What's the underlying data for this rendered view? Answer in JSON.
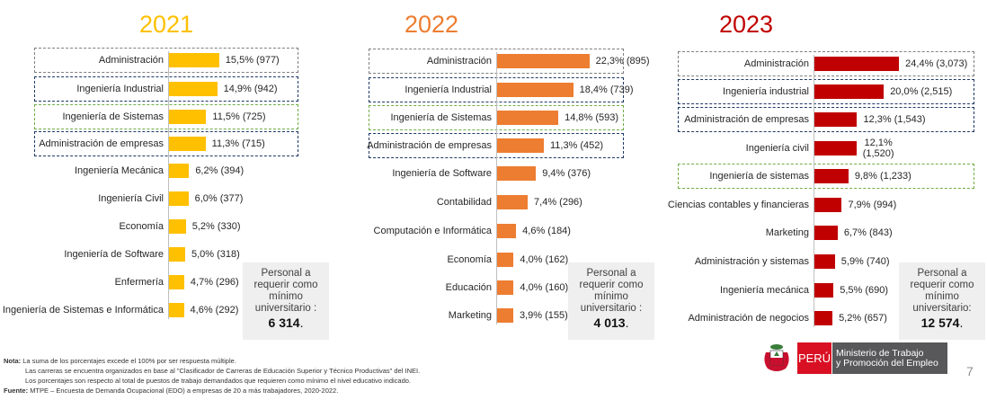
{
  "chart_data": [
    {
      "type": "bar",
      "orientation": "horizontal",
      "title": "2021",
      "color": "#FFC000",
      "categories": [
        "Administración",
        "Ingeniería Industrial",
        "Ingeniería de Sistemas",
        "Administración de empresas",
        "Ingeniería Mecánica",
        "Ingeniería Civil",
        "Economía",
        "Ingeniería de Software",
        "Enfermería",
        "Ingeniería de Sistemas e Informática"
      ],
      "values": [
        15.5,
        14.9,
        11.5,
        11.3,
        6.2,
        6.0,
        5.2,
        5.0,
        4.7,
        4.6
      ],
      "labels": [
        "15,5% (977)",
        "14,9% (942)",
        "11,5% (725)",
        "11,3% (715)",
        "6,2% (394)",
        "6,0% (377)",
        "5,2% (330)",
        "5,0% (318)",
        "4,7% (296)",
        "4,6% (292)"
      ],
      "highlight": [
        "gray",
        "navy",
        "green",
        "navy",
        null,
        null,
        null,
        null,
        null,
        null
      ],
      "note": {
        "text": "Personal a requerir como mínimo universitario :",
        "total": "6 314",
        "suffix": "."
      }
    },
    {
      "type": "bar",
      "orientation": "horizontal",
      "title": "2022",
      "color": "#ED7D31",
      "categories": [
        "Administración",
        "Ingeniería Industrial",
        "Ingeniería de Sistemas",
        "Administración de empresas",
        "Ingeniería de Software",
        "Contabilidad",
        "Computación e Informática",
        "Economía",
        "Educación",
        "Marketing"
      ],
      "values": [
        22.3,
        18.4,
        14.8,
        11.3,
        9.4,
        7.4,
        4.6,
        4.0,
        4.0,
        3.9
      ],
      "labels": [
        "22,3% (895)",
        "18,4% (739)",
        "14,8% (593)",
        "11,3% (452)",
        "9,4% (376)",
        "7,4% (296)",
        "4,6% (184)",
        "4,0% (162)",
        "4,0% (160)",
        "3,9% (155)"
      ],
      "highlight": [
        "gray",
        "navy",
        "green",
        "navy",
        null,
        null,
        null,
        null,
        null,
        null
      ],
      "note": {
        "text": "Personal a requerir como mínimo universitario :",
        "total": "4 013",
        "suffix": "."
      }
    },
    {
      "type": "bar",
      "orientation": "horizontal",
      "title": "2023",
      "color": "#C00000",
      "categories": [
        "Administración",
        "Ingeniería industrial",
        "Administración de empresas",
        "Ingeniería civil",
        "Ingeniería de sistemas",
        "Ciencias contables y financieras",
        "Marketing",
        "Administración y sistemas",
        "Ingeniería mecánica",
        "Administración de negocios"
      ],
      "values": [
        24.4,
        20.0,
        12.3,
        12.1,
        9.8,
        7.9,
        6.7,
        5.9,
        5.5,
        5.2
      ],
      "labels": [
        "24,4% (3,073)",
        "20,0% (2,515)",
        "12,3% (1,543)",
        "12,1% (1,520)",
        "9,8% (1,233)",
        "7,9% (994)",
        "6,7% (843)",
        "5,9% (740)",
        "5,5% (690)",
        "5,2% (657)"
      ],
      "highlight": [
        "gray",
        "navy",
        "navy",
        null,
        "green",
        null,
        null,
        null,
        null,
        null
      ],
      "note": {
        "text": "Personal a requerir como mínimo universitario:",
        "total": "12 574",
        "suffix": "."
      }
    }
  ],
  "footnotes": {
    "nota_label": "Nota:",
    "nota": "La suma de los porcentajes excede el 100% por ser respuesta múltiple.",
    "line2": "Las carreras se encuentra organizados en base al \"Clasificador de Carreras de Educación Superior y Técnico Productivas\" del INEI.",
    "line3": "Los porcentajes son respecto al total de puestos de trabajo demandados que requieren como mínimo el nivel educativo indicado.",
    "fuente_label": "Fuente:",
    "fuente": "MTPE – Encuesta de Demanda Ocupacional (EDO) a empresas de 20 a más trabajadores, 2020-2022."
  },
  "logo": {
    "peru": "PERÚ",
    "ministry_line1": "Ministerio de Trabajo",
    "ministry_line2": "y Promoción del Empleo"
  },
  "page_number": "7"
}
